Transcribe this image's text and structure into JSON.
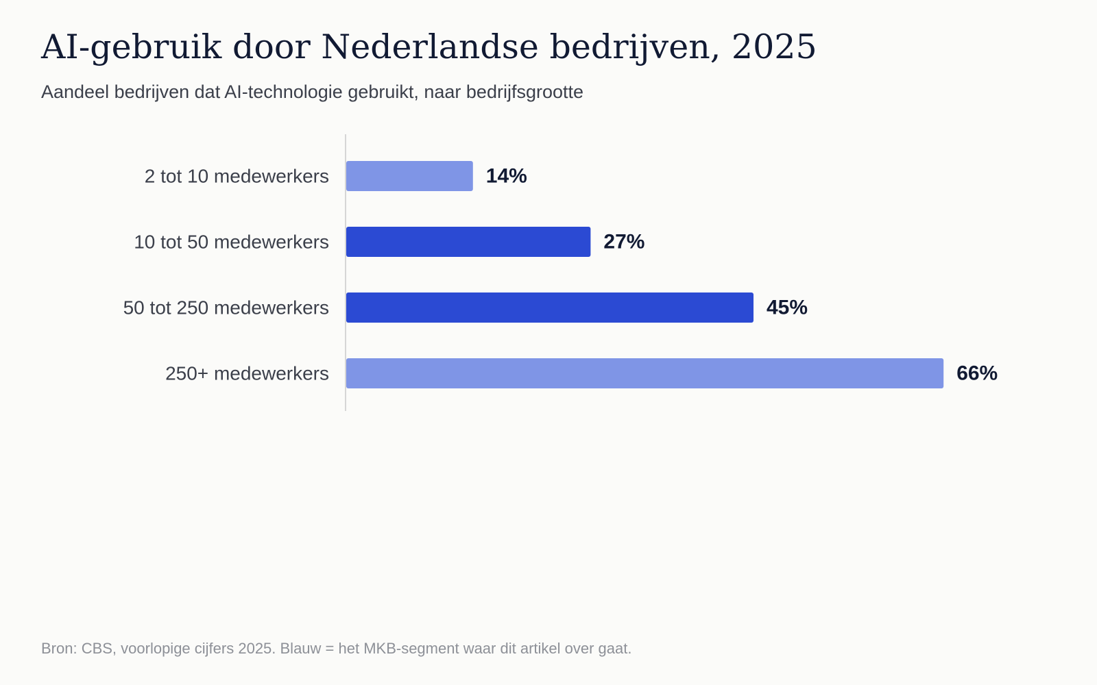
{
  "header": {
    "title": "AI-gebruik door Nederlandse bedrijven, 2025",
    "subtitle": "Aandeel bedrijven dat AI-technologie gebruikt, naar bedrijfsgrootte"
  },
  "footer": {
    "source": "Bron: CBS, voorlopige cijfers 2025. Blauw = het MKB-segment waar dit artikel over gaat."
  },
  "colors": {
    "highlight": "#2b4ad3",
    "muted": "#7f95e6",
    "axis": "#d6d6d6"
  },
  "chart_data": {
    "type": "bar",
    "orientation": "horizontal",
    "categories": [
      "2 tot 10 medewerkers",
      "10 tot 50 medewerkers",
      "50 tot 250 medewerkers",
      "250+ medewerkers"
    ],
    "values": [
      14,
      27,
      45,
      66
    ],
    "value_labels": [
      "14%",
      "27%",
      "45%",
      "66%"
    ],
    "highlighted": [
      false,
      true,
      true,
      false
    ],
    "unit": "%",
    "xlim": [
      0,
      100
    ],
    "grid": false,
    "legend": "none"
  }
}
